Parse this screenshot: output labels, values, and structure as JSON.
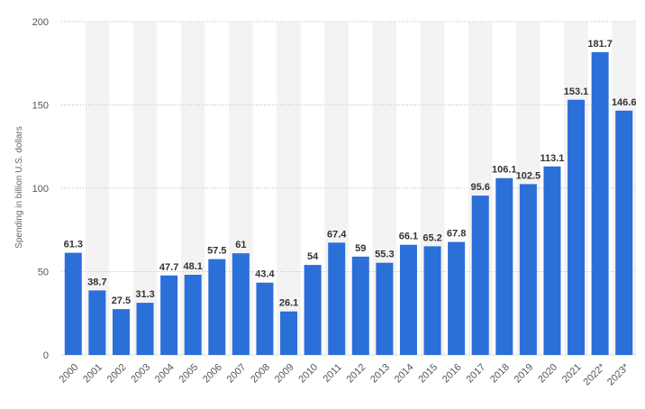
{
  "chart_data": {
    "type": "bar",
    "title": "",
    "xlabel": "",
    "ylabel": "Spending in billion U.S. dollars",
    "categories": [
      "2000",
      "2001",
      "2002",
      "2003",
      "2004",
      "2005",
      "2006",
      "2007",
      "2008",
      "2009",
      "2010",
      "2011",
      "2012",
      "2013",
      "2014",
      "2015",
      "2016",
      "2017",
      "2018",
      "2019",
      "2020",
      "2021",
      "2022*",
      "2023*"
    ],
    "values": [
      61.3,
      38.7,
      27.5,
      31.3,
      47.7,
      48.1,
      57.5,
      61,
      43.4,
      26.1,
      54,
      67.4,
      59,
      55.3,
      66.1,
      65.2,
      67.8,
      95.6,
      106.1,
      102.5,
      113.1,
      153.1,
      181.7,
      146.6
    ],
    "ylim": [
      0,
      200
    ],
    "yticks": [
      0,
      50,
      100,
      150,
      200
    ],
    "grid": true,
    "bar_color": "#2b6fd9",
    "band_color": "#f3f3f3",
    "grid_color": "#bdbdbd"
  }
}
